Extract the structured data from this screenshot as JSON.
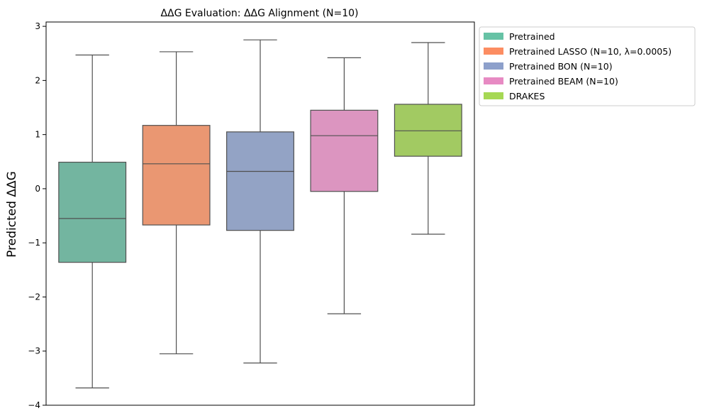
{
  "chart_data": {
    "type": "boxplot",
    "title": "ΔΔG Evaluation: ΔΔG Alignment (N=10)",
    "xlabel": "",
    "ylabel": "Predicted ΔΔG",
    "ylim": [
      -4,
      3.08
    ],
    "yticks": [
      -4,
      -3,
      -2,
      -1,
      0,
      1,
      2,
      3
    ],
    "ytick_labels": [
      "−4",
      "−3",
      "−2",
      "−1",
      "0",
      "1",
      "2",
      "3"
    ],
    "grid": false,
    "legend_position": "outside-upper-right",
    "series": [
      {
        "name": "Pretrained",
        "color": "#66c2a5",
        "fill": "#73b5a0",
        "whisker_low": -3.68,
        "q1": -1.36,
        "median": -0.55,
        "q3": 0.49,
        "whisker_high": 2.47
      },
      {
        "name": "Pretrained LASSO (N=10, λ=0.0005)",
        "color": "#fc8d62",
        "fill": "#ea9772",
        "whisker_low": -3.05,
        "q1": -0.67,
        "median": 0.46,
        "q3": 1.17,
        "whisker_high": 2.53
      },
      {
        "name": "Pretrained BON (N=10)",
        "color": "#8da0cb",
        "fill": "#93a3c5",
        "whisker_low": -3.22,
        "q1": -0.77,
        "median": 0.32,
        "q3": 1.05,
        "whisker_high": 2.75
      },
      {
        "name": "Pretrained BEAM (N=10)",
        "color": "#e78ac3",
        "fill": "#dc95c0",
        "whisker_low": -2.31,
        "q1": -0.05,
        "median": 0.98,
        "q3": 1.45,
        "whisker_high": 2.42
      },
      {
        "name": "DRAKES",
        "color": "#a6d854",
        "fill": "#a2ca62",
        "whisker_low": -0.84,
        "q1": 0.6,
        "median": 1.07,
        "q3": 1.56,
        "whisker_high": 2.7
      }
    ]
  }
}
